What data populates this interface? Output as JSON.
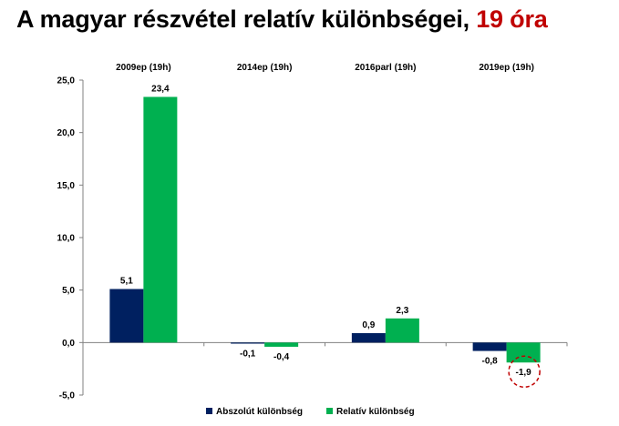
{
  "title": {
    "main": "A magyar részvétel relatív különbségei, ",
    "accent": "19 óra"
  },
  "colors": {
    "accent": "#c00000",
    "series_1": "#002060",
    "series_2": "#00b050",
    "highlight_circle": "#c00000"
  },
  "chart_data": {
    "type": "bar",
    "categories": [
      "2009ep  (19h)",
      "2014ep  (19h)",
      "2016parl  (19h)",
      "2019ep  (19h)"
    ],
    "series": [
      {
        "name": "Abszolút  különbség",
        "values": [
          5.1,
          -0.1,
          0.9,
          -0.8
        ],
        "labels": [
          "5,1",
          "-0,1",
          "0,9",
          "-0,8"
        ]
      },
      {
        "name": "Relatív  különbség",
        "values": [
          23.4,
          -0.4,
          2.3,
          -1.9
        ],
        "labels": [
          "23,4",
          "-0,4",
          "2,3",
          "-1,9"
        ]
      }
    ],
    "ylim": [
      -5,
      25
    ],
    "yticks": [
      25,
      20,
      15,
      10,
      5,
      0,
      -5
    ],
    "ytick_labels": [
      "25,0",
      "20,0",
      "15,0",
      "10,0",
      "5,0",
      "0,0",
      "-5,0"
    ],
    "legend_position": "bottom",
    "category_labels_position": "top",
    "highlight": {
      "series": 1,
      "category": 3
    }
  }
}
